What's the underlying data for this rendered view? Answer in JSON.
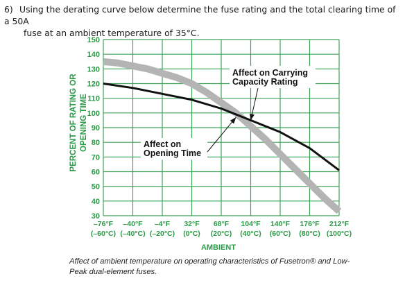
{
  "question": {
    "number": "6)",
    "line1": "Using the derating curve below determine the fuse rating and the total clearing time of a 50A",
    "line2": "fuse at an ambient temperature of 35°C."
  },
  "chart_data": {
    "type": "line",
    "ylabel_line1": "PERCENT OF RATING OR",
    "ylabel_line2": "OPENING TIME",
    "xlabel": "AMBIENT",
    "ylim": [
      30,
      150
    ],
    "yticks": [
      30,
      40,
      50,
      60,
      70,
      80,
      90,
      100,
      110,
      120,
      130,
      140,
      150
    ],
    "xlim": [
      -76,
      212
    ],
    "xticks": [
      {
        "f": "–76°F",
        "c": "(–60°C)",
        "value": -76
      },
      {
        "f": "–40°F",
        "c": "(–40°C)",
        "value": -40
      },
      {
        "f": "–4°F",
        "c": "(–20°C)",
        "value": -4
      },
      {
        "f": "32°F",
        "c": "(0°C)",
        "value": 32
      },
      {
        "f": "68°F",
        "c": "(20°C)",
        "value": 68
      },
      {
        "f": "104°F",
        "c": "(40°C)",
        "value": 104
      },
      {
        "f": "140°F",
        "c": "(60°C)",
        "value": 140
      },
      {
        "f": "176°F",
        "c": "(80°C)",
        "value": 176
      },
      {
        "f": "212°F",
        "c": "(100°C)",
        "value": 212
      }
    ],
    "grid": true,
    "series": [
      {
        "name": "Affect on Carrying Capacity Rating",
        "color": "#111111",
        "x": [
          -76,
          -40,
          -4,
          32,
          68,
          104,
          140,
          176,
          212
        ],
        "y": [
          120,
          117,
          113,
          109,
          103,
          95,
          87,
          76,
          61
        ]
      },
      {
        "name": "Affect on Opening Time",
        "color": "#b4b4b4",
        "x": [
          -76,
          -58,
          -40,
          -22,
          -4,
          14,
          32,
          50,
          68,
          86,
          104,
          122,
          140,
          158,
          176,
          194,
          212
        ],
        "y": [
          135,
          134,
          132,
          130,
          127,
          124,
          120,
          114,
          107,
          100,
          91,
          82,
          72,
          62,
          52,
          42,
          33
        ]
      }
    ],
    "annotations": [
      {
        "lines": [
          "Affect on Carrying",
          "Capacity Rating"
        ],
        "target_series": 0,
        "target_x": 104,
        "target_y": 95
      },
      {
        "lines": [
          "Affect on",
          "Opening Time"
        ],
        "target_series": 1,
        "target_x": 86,
        "target_y": 97
      }
    ]
  },
  "caption": {
    "line1": "Affect of ambient temperature on operating characteristics of Fusetron® and Low-",
    "line2": "Peak dual-element fuses."
  }
}
